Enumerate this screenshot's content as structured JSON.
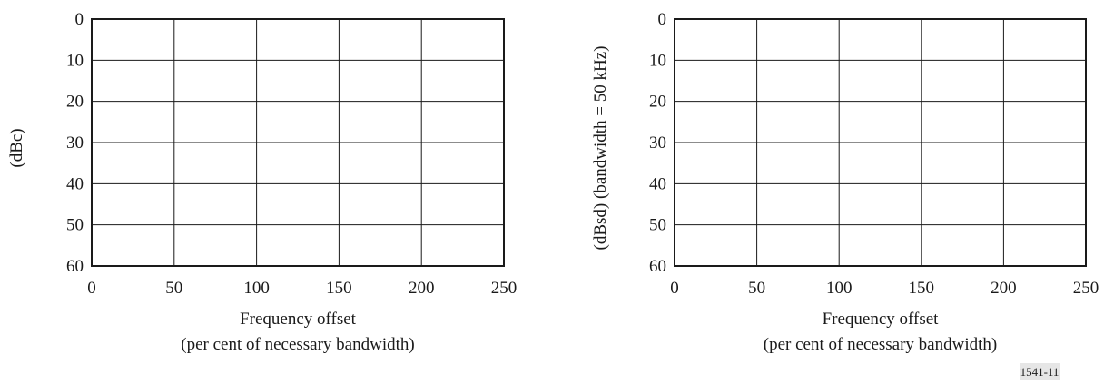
{
  "chart_data": [
    {
      "type": "line",
      "series": [],
      "xlabel": "Frequency offset",
      "xlabel_line2": "(per cent of necessary bandwidth)",
      "ylabel": "(dBc)",
      "xlim": [
        0,
        250
      ],
      "ylim": [
        0,
        60
      ],
      "y_inverted": true,
      "xticks": [
        0,
        50,
        100,
        150,
        200,
        250
      ],
      "yticks": [
        0,
        10,
        20,
        30,
        40,
        50,
        60
      ],
      "grid": true
    },
    {
      "type": "line",
      "series": [],
      "xlabel": "Frequency offset",
      "xlabel_line2": "(per cent of necessary bandwidth)",
      "ylabel": "(dBsd) (bandwidth = 50 kHz)",
      "xlim": [
        0,
        250
      ],
      "ylim": [
        0,
        60
      ],
      "y_inverted": true,
      "xticks": [
        0,
        50,
        100,
        150,
        200,
        250
      ],
      "yticks": [
        0,
        10,
        20,
        30,
        40,
        50,
        60
      ],
      "grid": true
    }
  ],
  "figure_id": "1541-11"
}
